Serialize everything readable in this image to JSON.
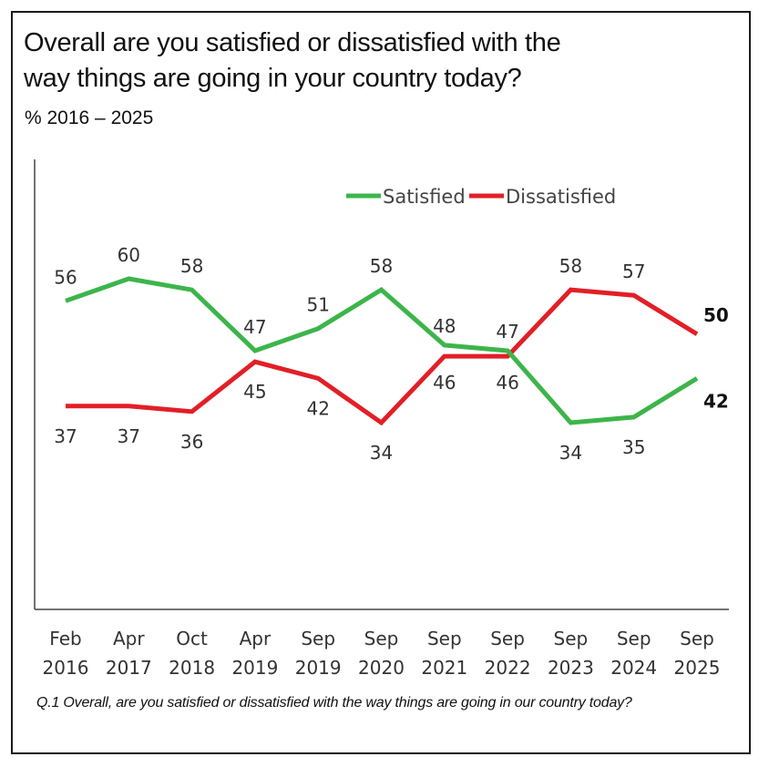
{
  "title_line1": "Overall are you satisfied or dissatisfied with the",
  "title_line2": "way things are going in your country today?",
  "subtitle": "%  2016 – 2025",
  "footnote": "Q.1  Overall, are you satisfied or dissatisfied with the way things are going in our country today?",
  "colors": {
    "satisfied": "#3cb54a",
    "dissatisfied": "#e21f26"
  },
  "chart_data": {
    "type": "line",
    "categories": [
      [
        "Feb",
        "2016"
      ],
      [
        "Apr",
        "2017"
      ],
      [
        "Oct",
        "2018"
      ],
      [
        "Apr",
        "2019"
      ],
      [
        "Sep",
        "2019"
      ],
      [
        "Sep",
        "2020"
      ],
      [
        "Sep",
        "2021"
      ],
      [
        "Sep",
        "2022"
      ],
      [
        "Sep",
        "2023"
      ],
      [
        "Sep",
        "2024"
      ],
      [
        "Sep",
        "2025"
      ]
    ],
    "series": [
      {
        "name": "Satisfied",
        "values": [
          56,
          60,
          58,
          47,
          51,
          58,
          48,
          47,
          34,
          35,
          42
        ]
      },
      {
        "name": "Dissatisfied",
        "values": [
          37,
          37,
          36,
          45,
          42,
          34,
          46,
          46,
          58,
          57,
          50
        ]
      }
    ],
    "legend_position": "top-right",
    "grid": false
  }
}
